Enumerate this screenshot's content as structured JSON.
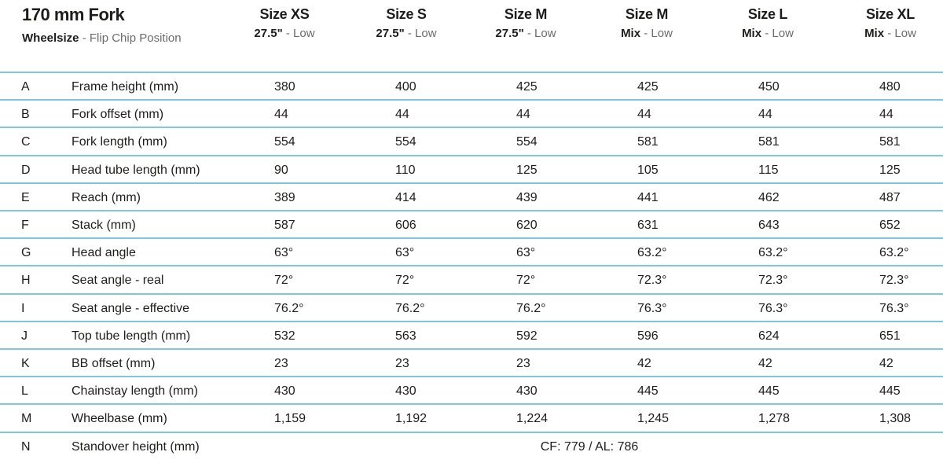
{
  "header": {
    "title": "170 mm Fork",
    "subtitle_bold": "Wheelsize",
    "subtitle_rest": " - Flip Chip Position"
  },
  "columns": [
    {
      "size": "Size XS",
      "wheel": "27.5\"",
      "position": " - Low"
    },
    {
      "size": "Size S",
      "wheel": "27.5\"",
      "position": " - Low"
    },
    {
      "size": "Size M",
      "wheel": "27.5\"",
      "position": " - Low"
    },
    {
      "size": "Size M",
      "wheel": "Mix",
      "position": " - Low"
    },
    {
      "size": "Size L",
      "wheel": "Mix",
      "position": " - Low"
    },
    {
      "size": "Size XL",
      "wheel": "Mix",
      "position": " - Low"
    }
  ],
  "rows": [
    {
      "letter": "A",
      "label": "Frame height (mm)",
      "values": [
        "380",
        "400",
        "425",
        "425",
        "450",
        "480"
      ]
    },
    {
      "letter": "B",
      "label": "Fork offset (mm)",
      "values": [
        "44",
        "44",
        "44",
        "44",
        "44",
        "44"
      ]
    },
    {
      "letter": "C",
      "label": "Fork length (mm)",
      "values": [
        "554",
        "554",
        "554",
        "581",
        "581",
        "581"
      ]
    },
    {
      "letter": "D",
      "label": "Head tube length (mm)",
      "values": [
        "90",
        "110",
        "125",
        "105",
        "115",
        "125"
      ]
    },
    {
      "letter": "E",
      "label": "Reach (mm)",
      "values": [
        "389",
        "414",
        "439",
        "441",
        "462",
        "487"
      ]
    },
    {
      "letter": "F",
      "label": "Stack (mm)",
      "values": [
        "587",
        "606",
        "620",
        "631",
        "643",
        "652"
      ]
    },
    {
      "letter": "G",
      "label": "Head angle",
      "values": [
        "63°",
        "63°",
        "63°",
        "63.2°",
        "63.2°",
        "63.2°"
      ]
    },
    {
      "letter": "H",
      "label": "Seat angle - real",
      "values": [
        "72°",
        "72°",
        "72°",
        "72.3°",
        "72.3°",
        "72.3°"
      ]
    },
    {
      "letter": "I",
      "label": "Seat angle - effective",
      "values": [
        "76.2°",
        "76.2°",
        "76.2°",
        "76.3°",
        "76.3°",
        "76.3°"
      ]
    },
    {
      "letter": "J",
      "label": "Top tube length (mm)",
      "values": [
        "532",
        "563",
        "592",
        "596",
        "624",
        "651"
      ]
    },
    {
      "letter": "K",
      "label": "BB offset (mm)",
      "values": [
        "23",
        "23",
        "23",
        "42",
        "42",
        "42"
      ]
    },
    {
      "letter": "L",
      "label": "Chainstay length (mm)",
      "values": [
        "430",
        "430",
        "430",
        "445",
        "445",
        "445"
      ]
    },
    {
      "letter": "M",
      "label": "Wheelbase (mm)",
      "values": [
        "1,159",
        "1,192",
        "1,224",
        "1,245",
        "1,278",
        "1,308"
      ]
    },
    {
      "letter": "N",
      "label": "Standover height (mm)",
      "span_value": "CF: 779 / AL: 786"
    }
  ]
}
